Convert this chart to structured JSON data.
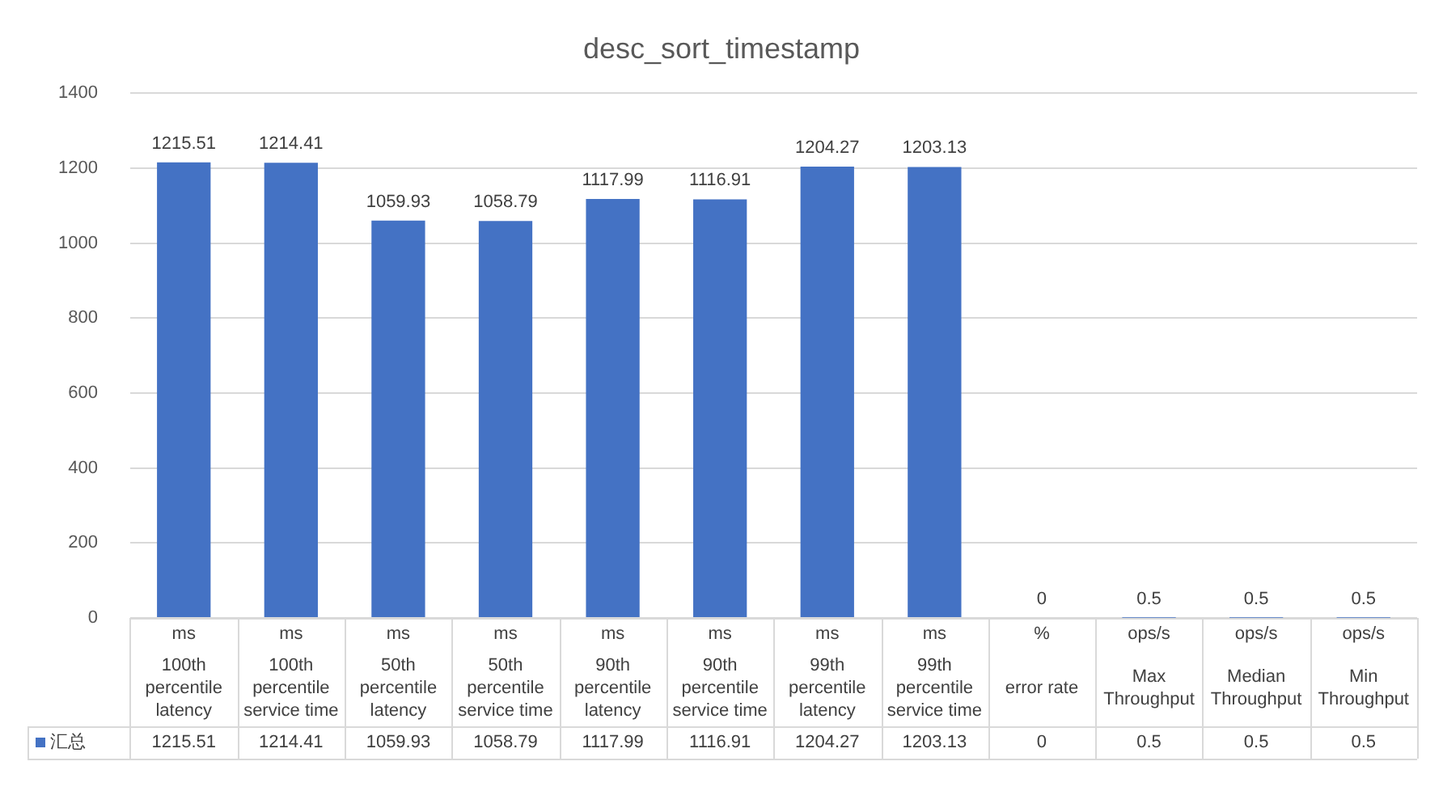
{
  "chart_data": {
    "type": "bar",
    "title": "desc_sort_timestamp",
    "categories": [
      "ms\n100th percentile latency",
      "ms\n100th percentile service time",
      "ms\n50th percentile latency",
      "ms\n50th percentile service time",
      "ms\n90th percentile latency",
      "ms\n90th percentile service time",
      "ms\n99th percentile latency",
      "ms\n99th percentile service time",
      "%\nerror rate",
      "ops/s\nMax Throughput",
      "ops/s\nMedian Throughput",
      "ops/s\nMin Throughput"
    ],
    "series": [
      {
        "name": "汇总",
        "color": "#4472c4",
        "values": [
          1215.51,
          1214.41,
          1059.93,
          1058.79,
          1117.99,
          1116.91,
          1204.27,
          1203.13,
          0,
          0.5,
          0.5,
          0.5
        ],
        "value_labels": [
          "1215.51",
          "1214.41",
          "1059.93",
          "1058.79",
          "1117.99",
          "1116.91",
          "1204.27",
          "1203.13",
          "0",
          "0.5",
          "0.5",
          "0.5"
        ]
      }
    ],
    "annotations": [
      "1215.51",
      "1214.41",
      "1059.93",
      "1058.79",
      "1117.99",
      "1116.91",
      "1204.27",
      "1203.13",
      "0",
      "0.5",
      "0.5",
      "0.5"
    ],
    "ylim": [
      0,
      1400
    ],
    "yticks": [
      0,
      200,
      400,
      600,
      800,
      1000,
      1200,
      1400
    ],
    "grid": "y",
    "data_labels": true,
    "legend": "bottom"
  }
}
